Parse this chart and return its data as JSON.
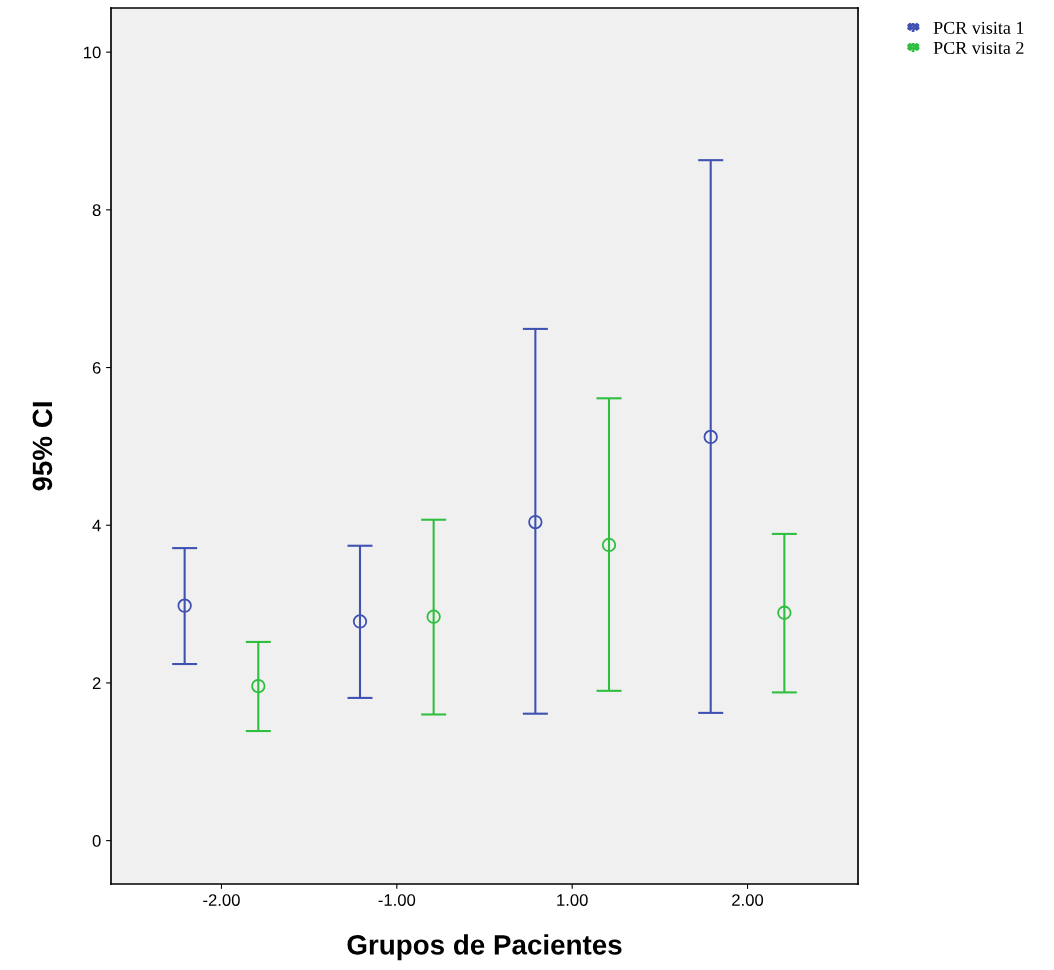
{
  "chart_data": {
    "type": "scatter",
    "xlabel": "Grupos de Pacientes",
    "ylabel": "95% CI",
    "categories": [
      "-2.00",
      "-1.00",
      "1.00",
      "2.00"
    ],
    "series": [
      {
        "name": "PCR visita 1",
        "color": "#3f51b1",
        "values": [
          2.98,
          2.78,
          4.04,
          5.12
        ],
        "errors": [
          [
            2.24,
            3.71
          ],
          [
            1.81,
            3.74
          ],
          [
            1.61,
            6.49
          ],
          [
            1.62,
            8.63
          ]
        ]
      },
      {
        "name": "PCR visita 2",
        "color": "#2fbf3f",
        "values": [
          1.96,
          2.84,
          3.75,
          2.89
        ],
        "errors": [
          [
            1.39,
            2.52
          ],
          [
            1.6,
            4.07
          ],
          [
            1.9,
            5.61
          ],
          [
            1.88,
            3.89
          ]
        ]
      }
    ],
    "ylim": [
      -0.55,
      10.56
    ],
    "yticks": [
      0,
      2,
      4,
      6,
      8,
      10
    ],
    "marker": "circle",
    "legend": "top right",
    "grid": false
  }
}
